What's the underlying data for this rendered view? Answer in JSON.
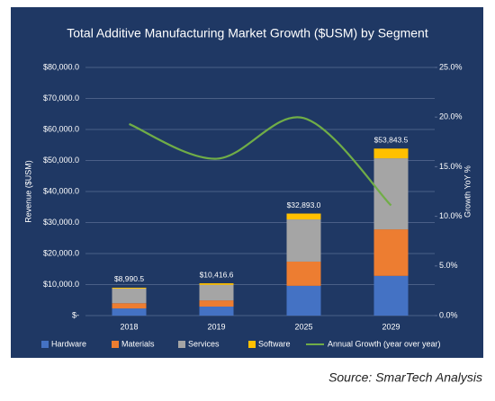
{
  "chart_data": {
    "type": "bar",
    "title": "Total Additive Manufacturing Market Growth ($USM) by Segment",
    "y_label": "Revenue ($USM)",
    "y2_label": "Growth YoY %",
    "categories": [
      "2018",
      "2019",
      "2025",
      "2029"
    ],
    "series": [
      {
        "name": "Hardware",
        "type": "bar",
        "color": "#4472c4",
        "values": [
          2300,
          2900,
          9600,
          12800
        ]
      },
      {
        "name": "Materials",
        "type": "bar",
        "color": "#ed7d31",
        "values": [
          1700,
          2000,
          7800,
          15000
        ]
      },
      {
        "name": "Services",
        "type": "bar",
        "color": "#a5a5a5",
        "values": [
          4700,
          5000,
          13600,
          22900
        ]
      },
      {
        "name": "Software",
        "type": "bar",
        "color": "#ffc000",
        "values": [
          290.5,
          516.6,
          1893.0,
          3143.5
        ]
      },
      {
        "name": "Annual Growth (year over year)",
        "type": "line",
        "axis": "y2",
        "color": "#70ad47",
        "values": [
          19.3,
          15.8,
          19.9,
          11.1
        ]
      }
    ],
    "totals": [
      8990.5,
      10416.6,
      32893.0,
      53843.5
    ],
    "total_labels": [
      "$8,990.5",
      "$10,416.6",
      "$32,893.0",
      "$53,843.5"
    ],
    "ylim": [
      0,
      80000
    ],
    "yticks": [
      {
        "value": 0,
        "label": "$-"
      },
      {
        "value": 10000,
        "label": "$10,000.0"
      },
      {
        "value": 20000,
        "label": "$20,000.0"
      },
      {
        "value": 30000,
        "label": "$30,000.0"
      },
      {
        "value": 40000,
        "label": "$40,000.0"
      },
      {
        "value": 50000,
        "label": "$50,000.0"
      },
      {
        "value": 60000,
        "label": "$60,000.0"
      },
      {
        "value": 70000,
        "label": "$70,000.0"
      },
      {
        "value": 80000,
        "label": "$80,000.0"
      }
    ],
    "y2lim": [
      0,
      25
    ],
    "y2ticks": [
      {
        "value": 0,
        "label": "0.0%"
      },
      {
        "value": 5,
        "label": "5.0%"
      },
      {
        "value": 10,
        "label": "10.0%"
      },
      {
        "value": 15,
        "label": "15.0%"
      },
      {
        "value": 20,
        "label": "20.0%"
      },
      {
        "value": 25,
        "label": "25.0%"
      }
    ],
    "grid": true,
    "legend": "bottom",
    "source": "Source: SmarTech Analysis"
  }
}
